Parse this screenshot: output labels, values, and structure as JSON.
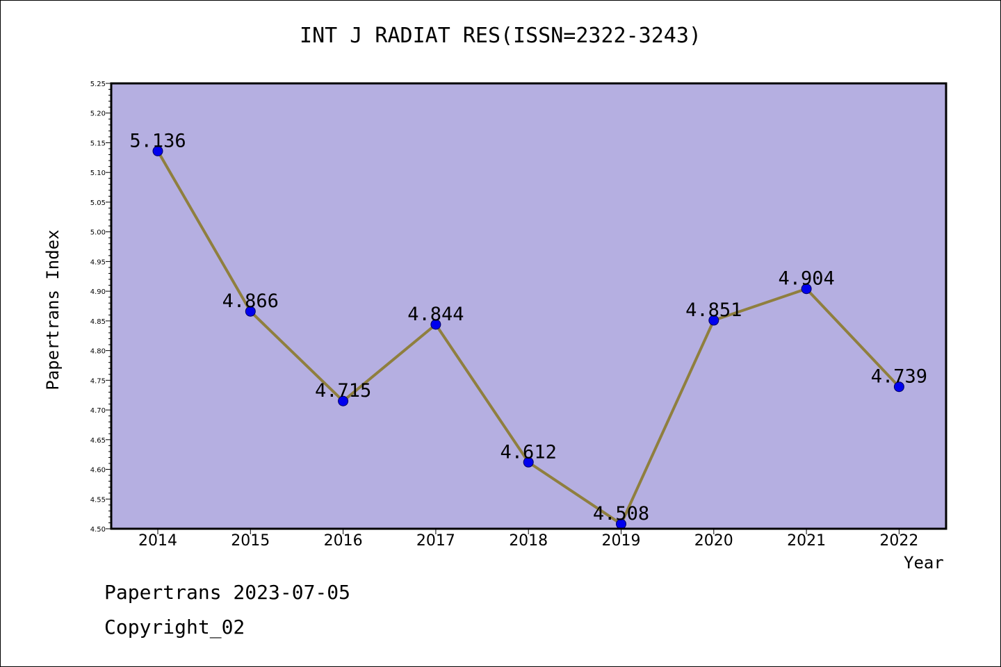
{
  "colors": {
    "plot_bg": "#b5afe1",
    "line": "#8f7f3e",
    "marker": "#0000ee",
    "axis": "#000000"
  },
  "footer": {
    "line1": "Papertrans 2023-07-05",
    "line2": "Copyright_02"
  },
  "chart_data": {
    "type": "line",
    "title": "INT J RADIAT RES(ISSN=2322-3243)",
    "xlabel": "Year",
    "ylabel": "Papertrans Index",
    "categories": [
      "2014",
      "2015",
      "2016",
      "2017",
      "2018",
      "2019",
      "2020",
      "2021",
      "2022"
    ],
    "series": [
      {
        "values": [
          5.136,
          4.866,
          4.715,
          4.844,
          4.612,
          4.508,
          4.851,
          4.904,
          4.739
        ]
      }
    ],
    "data_labels": [
      "5.136",
      "4.866",
      "4.715",
      "4.844",
      "4.612",
      "4.508",
      "4.851",
      "4.904",
      "4.739"
    ],
    "ylim": [
      4.5,
      5.25
    ],
    "y_ticks": [
      "4.50",
      "4.55",
      "4.60",
      "4.65",
      "4.70",
      "4.75",
      "4.80",
      "4.85",
      "4.90",
      "4.95",
      "5.00",
      "5.05",
      "5.10",
      "5.15",
      "5.20",
      "5.25"
    ],
    "grid": false,
    "legend": "none"
  }
}
